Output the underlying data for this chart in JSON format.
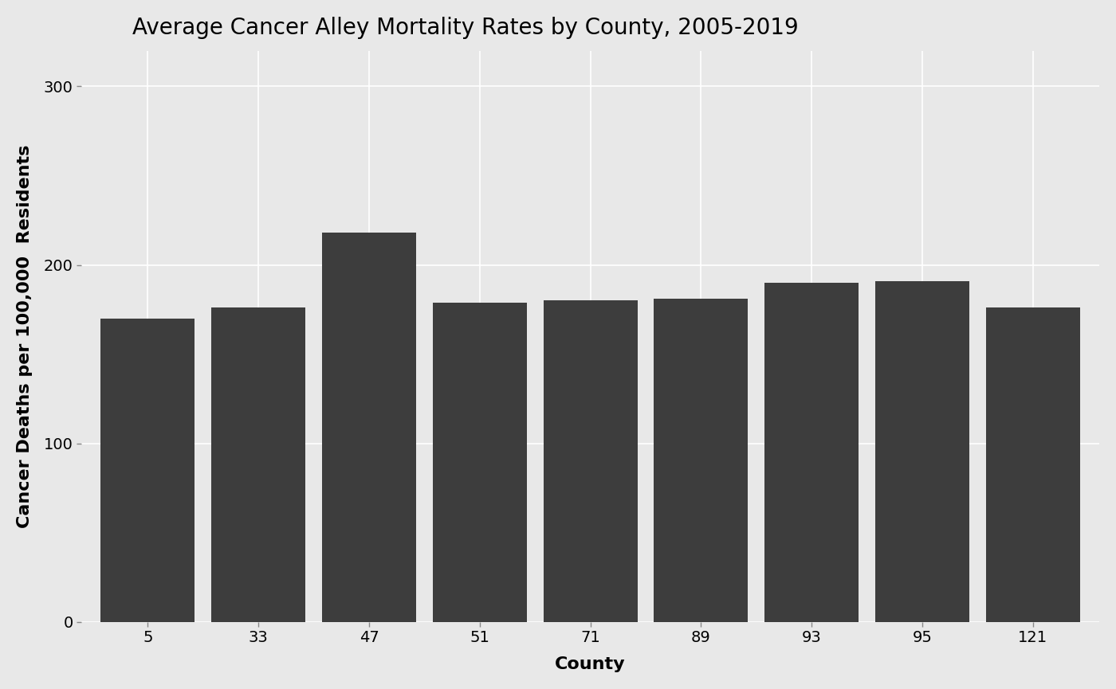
{
  "title": "Average Cancer Alley Mortality Rates by County, 2005-2019",
  "xlabel": "County",
  "ylabel": "Cancer Deaths per 100,000  Residents",
  "categories": [
    "5",
    "33",
    "47",
    "51",
    "71",
    "89",
    "93",
    "95",
    "121"
  ],
  "values": [
    170,
    176,
    218,
    179,
    180,
    181,
    190,
    191,
    176
  ],
  "bar_color": "#3d3d3d",
  "background_color": "#e8e8e8",
  "panel_color": "#e8e8e8",
  "grid_color": "#ffffff",
  "ylim": [
    0,
    320
  ],
  "yticks": [
    0,
    100,
    200,
    300
  ],
  "title_fontsize": 20,
  "axis_label_fontsize": 16,
  "tick_fontsize": 14,
  "bar_width": 0.85
}
